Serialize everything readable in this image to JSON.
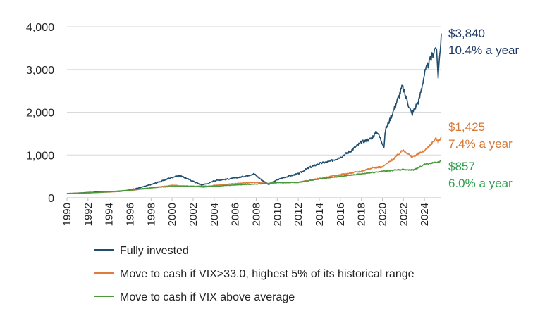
{
  "chart_data": {
    "type": "line",
    "title": "",
    "xlabel": "",
    "ylabel": "",
    "xlim": [
      1990,
      2025.6
    ],
    "ylim": [
      0,
      4000
    ],
    "grid": true,
    "legend_position": "bottom",
    "x_ticks": [
      "1990",
      "1992",
      "1994",
      "1996",
      "1998",
      "2000",
      "2002",
      "2004",
      "2006",
      "2008",
      "2010",
      "2012",
      "2014",
      "2016",
      "2018",
      "2020",
      "2022",
      "2024"
    ],
    "y_ticks": [
      {
        "value": 0,
        "label": "0"
      },
      {
        "value": 1000,
        "label": "1,000"
      },
      {
        "value": 2000,
        "label": "2,000"
      },
      {
        "value": 3000,
        "label": "3,000"
      },
      {
        "value": 4000,
        "label": "4,000"
      }
    ],
    "series": [
      {
        "name": "Fully invested",
        "color": "#1f4e6e",
        "end_value_label": "$3,840",
        "end_rate_label": "10.4% a year",
        "end_label_color": "#1f3864",
        "x": [
          1990,
          1991,
          1992,
          1993,
          1994,
          1995,
          1996,
          1997,
          1998,
          1999,
          2000,
          2000.7,
          2001.5,
          2002.8,
          2003.5,
          2004,
          2005,
          2006,
          2007,
          2007.8,
          2008.5,
          2009.2,
          2010,
          2011,
          2012,
          2013,
          2014,
          2015,
          2016,
          2017,
          2018,
          2018.9,
          2019.5,
          2020.15,
          2020.3,
          2021,
          2021.9,
          2022.8,
          2023.5,
          2024,
          2024.6,
          2025.1,
          2025.3,
          2025.6
        ],
        "values": [
          100,
          110,
          125,
          135,
          140,
          150,
          185,
          240,
          310,
          390,
          480,
          520,
          440,
          300,
          340,
          400,
          430,
          460,
          510,
          560,
          420,
          310,
          420,
          500,
          560,
          700,
          800,
          850,
          950,
          1100,
          1300,
          1380,
          1550,
          1200,
          1600,
          2000,
          2600,
          1950,
          2300,
          2900,
          3250,
          3550,
          2850,
          3840
        ]
      },
      {
        "name": "Move to cash if VIX>33.0, highest 5% of its historical range",
        "color": "#e07b39",
        "end_value_label": "$1,425",
        "end_rate_label": "7.4% a year",
        "end_label_color": "#d47a38",
        "x": [
          1990,
          1992,
          1994,
          1996,
          1998,
          2000,
          2002,
          2003,
          2004,
          2006,
          2007.8,
          2008.5,
          2009.2,
          2010,
          2012,
          2014,
          2016,
          2018,
          2019,
          2020,
          2021,
          2022,
          2022.8,
          2024,
          2025.1,
          2025.3,
          2025.6
        ],
        "values": [
          100,
          115,
          135,
          170,
          230,
          290,
          270,
          250,
          290,
          330,
          360,
          350,
          330,
          360,
          360,
          450,
          540,
          620,
          700,
          720,
          900,
          1120,
          950,
          1100,
          1380,
          1300,
          1425
        ]
      },
      {
        "name": "Move to cash if VIX above average",
        "color": "#4a9a3c",
        "end_value_label": "$857",
        "end_rate_label": "6.0% a year",
        "end_label_color": "#2e9e4f",
        "x": [
          1990,
          1992,
          1994,
          1996,
          1998,
          2000,
          2002,
          2004,
          2006,
          2008,
          2010,
          2012,
          2014,
          2016,
          2018,
          2020,
          2022,
          2023,
          2024,
          2025.6
        ],
        "values": [
          100,
          115,
          140,
          180,
          235,
          265,
          270,
          270,
          300,
          320,
          350,
          360,
          440,
          500,
          560,
          620,
          660,
          650,
          780,
          857
        ]
      }
    ]
  }
}
